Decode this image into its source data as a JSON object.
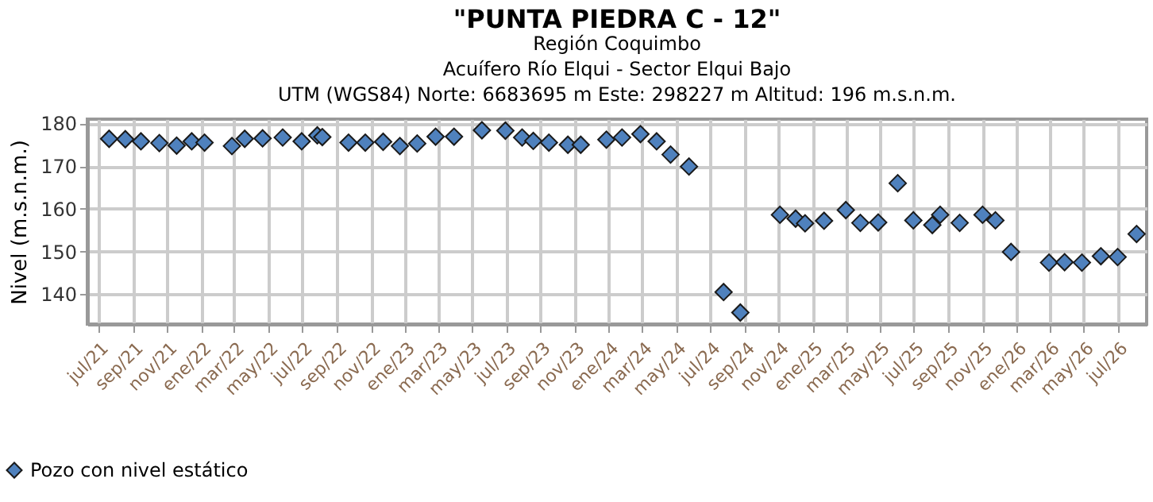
{
  "chart_data": {
    "type": "scatter",
    "title": "\"PUNTA PIEDRA C - 12\"",
    "subtitle": "Región Coquimbo\nAcuífero Río Elqui - Sector Elqui Bajo\nUTM (WGS84) Norte: 6683695 m Este: 298227 m   Altitud: 196 m.s.n.m.",
    "ylabel": "Nivel (m.s.n.m.)",
    "x": [
      "2021-07-20",
      "2021-08-18",
      "2021-09-15",
      "2021-10-18",
      "2021-11-18",
      "2021-12-15",
      "2022-01-07",
      "2022-02-25",
      "2022-03-20",
      "2022-04-21",
      "2022-05-27",
      "2022-06-30",
      "2022-07-28",
      "2022-08-06",
      "2022-09-22",
      "2022-10-22",
      "2022-11-23",
      "2022-12-23",
      "2023-01-23",
      "2023-02-25",
      "2023-03-30",
      "2023-05-19",
      "2023-06-30",
      "2023-07-30",
      "2023-08-19",
      "2023-09-16",
      "2023-10-20",
      "2023-11-12",
      "2023-12-28",
      "2024-01-25",
      "2024-02-27",
      "2024-03-27",
      "2024-04-21",
      "2024-05-24",
      "2024-07-25",
      "2024-08-24",
      "2024-11-03",
      "2024-12-01",
      "2024-12-18",
      "2025-01-21",
      "2025-03-01",
      "2025-03-27",
      "2025-04-28",
      "2025-06-02",
      "2025-06-30",
      "2025-08-03",
      "2025-08-17",
      "2025-09-21",
      "2025-11-01",
      "2025-11-24",
      "2025-12-22",
      "2026-02-28",
      "2026-03-28",
      "2026-04-28",
      "2026-06-01",
      "2026-07-01",
      "2026-08-04"
    ],
    "series": [
      {
        "name": "Pozo con nivel estático",
        "color": "#4f81bd",
        "values": [
          176.4,
          176.3,
          175.8,
          175.4,
          174.8,
          175.8,
          175.5,
          174.7,
          176.4,
          176.5,
          176.7,
          175.8,
          177.2,
          176.8,
          175.5,
          175.5,
          175.7,
          174.7,
          175.3,
          176.9,
          176.9,
          178.4,
          178.3,
          176.7,
          175.9,
          175.5,
          175,
          175,
          176.2,
          176.7,
          177.5,
          175.8,
          172.7,
          169.9,
          140.5,
          135.7,
          158.6,
          157.7,
          156.6,
          157.2,
          159.7,
          156.7,
          156.8,
          166,
          157.3,
          156.2,
          158.6,
          156.7,
          158.6,
          157.3,
          149.9,
          147.4,
          147.5,
          147.4,
          148.9,
          148.7,
          154.1
        ]
      }
    ],
    "xlim": [
      "2021-06-11",
      "2026-08-22"
    ],
    "xticks": [
      {
        "value": "2021-07-01",
        "label": "jul/21"
      },
      {
        "value": "2021-09-01",
        "label": "sep/21"
      },
      {
        "value": "2021-11-01",
        "label": "nov/21"
      },
      {
        "value": "2022-01-01",
        "label": "ene/22"
      },
      {
        "value": "2022-03-01",
        "label": "mar/22"
      },
      {
        "value": "2022-05-01",
        "label": "may/22"
      },
      {
        "value": "2022-07-01",
        "label": "jul/22"
      },
      {
        "value": "2022-09-01",
        "label": "sep/22"
      },
      {
        "value": "2022-11-01",
        "label": "nov/22"
      },
      {
        "value": "2023-01-01",
        "label": "ene/23"
      },
      {
        "value": "2023-03-01",
        "label": "mar/23"
      },
      {
        "value": "2023-05-01",
        "label": "may/23"
      },
      {
        "value": "2023-07-01",
        "label": "jul/23"
      },
      {
        "value": "2023-09-01",
        "label": "sep/23"
      },
      {
        "value": "2023-11-01",
        "label": "nov/23"
      },
      {
        "value": "2024-01-01",
        "label": "ene/24"
      },
      {
        "value": "2024-03-01",
        "label": "mar/24"
      },
      {
        "value": "2024-05-01",
        "label": "may/24"
      },
      {
        "value": "2024-07-01",
        "label": "jul/24"
      },
      {
        "value": "2024-09-01",
        "label": "sep/24"
      },
      {
        "value": "2024-11-01",
        "label": "nov/24"
      },
      {
        "value": "2025-01-01",
        "label": "ene/25"
      },
      {
        "value": "2025-03-01",
        "label": "mar/25"
      },
      {
        "value": "2025-05-01",
        "label": "may/25"
      },
      {
        "value": "2025-07-01",
        "label": "jul/25"
      },
      {
        "value": "2025-09-01",
        "label": "sep/25"
      },
      {
        "value": "2025-11-01",
        "label": "nov/25"
      },
      {
        "value": "2026-01-01",
        "label": "ene/26"
      },
      {
        "value": "2026-03-01",
        "label": "mar/26"
      },
      {
        "value": "2026-05-01",
        "label": "may/26"
      },
      {
        "value": "2026-07-01",
        "label": "jul/26"
      }
    ],
    "ylim": [
      133,
      181
    ],
    "yticks": [
      140,
      150,
      160,
      170,
      180
    ],
    "grid": true,
    "legend": "bottom",
    "marker": "diamond"
  }
}
